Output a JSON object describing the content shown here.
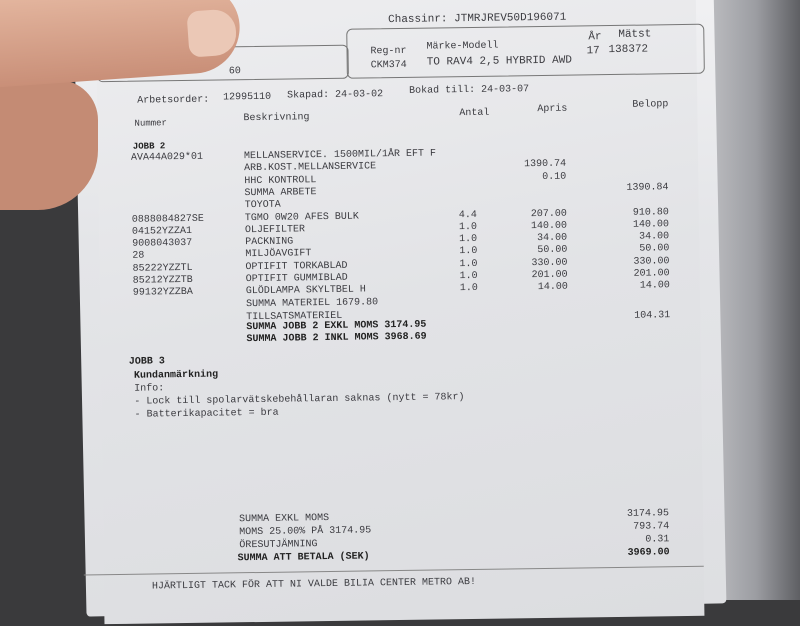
{
  "header": {
    "chassinr": "Chassinr: JTMRJREV50D196071",
    "regnr_label": "Reg-nr",
    "regnr": "CKM374",
    "model_label": "Märke-Modell",
    "model": "TO RAV4 2,5 HYBRID AWD",
    "year_label": "År",
    "mileage_label": "Mätst",
    "year": "17",
    "mileage": "138372",
    "partial": "60"
  },
  "order": {
    "label": "Arbetsorder:",
    "number": "12995110",
    "created": "Skapad: 24-03-02",
    "booked": "Bokad till: 24-03-07"
  },
  "columns": {
    "number": "Nummer",
    "description": "Beskrivning",
    "qty": "Antal",
    "unit_price": "Apris",
    "amount": "Belopp"
  },
  "job2": {
    "title": "JOBB  2",
    "rows": [
      {
        "num": "AVA44A029*01",
        "desc": "MELLANSERVICE. 1500MIL/1ÅR EFT F",
        "qty": "",
        "price": "",
        "amount": ""
      },
      {
        "num": "",
        "desc": "ARB.KOST.MELLANSERVICE",
        "qty": "",
        "price": "1390.74",
        "amount": ""
      },
      {
        "num": "",
        "desc": "HHC KONTROLL",
        "qty": "",
        "price": "0.10",
        "amount": ""
      },
      {
        "num": "",
        "desc": "SUMMA ARBETE",
        "qty": "",
        "price": "",
        "amount": "1390.84"
      },
      {
        "num": "",
        "desc": "TOYOTA",
        "qty": "",
        "price": "",
        "amount": ""
      },
      {
        "num": "0888084827SE",
        "desc": "TGMO 0W20 AFES BULK",
        "qty": "4.4",
        "price": "207.00",
        "amount": "910.80"
      },
      {
        "num": "04152YZZA1",
        "desc": "OLJEFILTER",
        "qty": "1.0",
        "price": "140.00",
        "amount": "140.00"
      },
      {
        "num": "9008043037",
        "desc": "PACKNING",
        "qty": "1.0",
        "price": "34.00",
        "amount": "34.00"
      },
      {
        "num": "28",
        "desc": "MILJÖAVGIFT",
        "qty": "1.0",
        "price": "50.00",
        "amount": "50.00"
      },
      {
        "num": "85222YZZTL",
        "desc": "OPTIFIT TORKABLAD",
        "qty": "1.0",
        "price": "330.00",
        "amount": "330.00"
      },
      {
        "num": "85212YZZTB",
        "desc": "OPTIFIT GUMMIBLAD",
        "qty": "1.0",
        "price": "201.00",
        "amount": "201.00"
      },
      {
        "num": "99132YZZBA",
        "desc": "GLÖDLAMPA SKYLTBEL H",
        "qty": "1.0",
        "price": "14.00",
        "amount": "14.00"
      },
      {
        "num": "",
        "desc": "SUMMA MATERIEL  1679.80",
        "qty": "",
        "price": "",
        "amount": ""
      },
      {
        "num": "",
        "desc": "TILLSATSMATERIEL",
        "qty": "",
        "price": "",
        "amount": "104.31"
      }
    ],
    "total_excl": "SUMMA JOBB 2 EXKL MOMS 3174.95",
    "total_incl": "SUMMA JOBB 2 INKL MOMS 3968.69"
  },
  "job3": {
    "title": "JOBB  3",
    "remark_title": "Kundanmärkning",
    "info": "Info:",
    "notes": [
      "- Lock till spolarvätskebehållaran saknas (nytt = 78kr)",
      "- Batterikapacitet = bra"
    ]
  },
  "totals": [
    {
      "label": "SUMMA EXKL MOMS",
      "value": "3174.95"
    },
    {
      "label": "MOMS 25.00% PÅ 3174.95",
      "value": "793.74"
    },
    {
      "label": "ÖRESUTJÄMNING",
      "value": "0.31"
    },
    {
      "label": "SUMMA ATT BETALA (SEK)",
      "value": "3969.00"
    }
  ],
  "footer": "HJÄRTLIGT TACK FÖR ATT NI VALDE BILIA CENTER METRO AB!"
}
